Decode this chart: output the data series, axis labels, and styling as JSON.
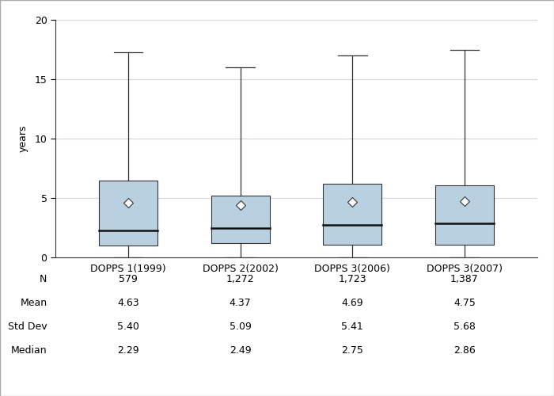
{
  "groups": [
    "DOPPS 1(1999)",
    "DOPPS 2(2002)",
    "DOPPS 3(2006)",
    "DOPPS 3(2007)"
  ],
  "box_data": [
    {
      "q1": 1.0,
      "median": 2.29,
      "q3": 6.5,
      "whisker_low": 0.0,
      "whisker_high": 17.3,
      "mean": 4.63
    },
    {
      "q1": 1.2,
      "median": 2.49,
      "q3": 5.2,
      "whisker_low": 0.0,
      "whisker_high": 16.0,
      "mean": 4.37
    },
    {
      "q1": 1.1,
      "median": 2.75,
      "q3": 6.2,
      "whisker_low": 0.0,
      "whisker_high": 17.0,
      "mean": 4.69
    },
    {
      "q1": 1.1,
      "median": 2.86,
      "q3": 6.1,
      "whisker_low": 0.0,
      "whisker_high": 17.5,
      "mean": 4.75
    }
  ],
  "stats_rows": [
    {
      "label": "N",
      "values": [
        "579",
        "1,272",
        "1,723",
        "1,387"
      ]
    },
    {
      "label": "Mean",
      "values": [
        "4.63",
        "4.37",
        "4.69",
        "4.75"
      ]
    },
    {
      "label": "Std Dev",
      "values": [
        "5.40",
        "5.09",
        "5.41",
        "5.68"
      ]
    },
    {
      "label": "Median",
      "values": [
        "2.29",
        "2.49",
        "2.75",
        "2.86"
      ]
    }
  ],
  "box_color": "#b8d0e0",
  "box_edge_color": "#333333",
  "whisker_color": "#333333",
  "median_color": "#111111",
  "mean_marker": "D",
  "mean_marker_color": "white",
  "mean_marker_edge": "#333333",
  "ylabel": "years",
  "ylim": [
    0,
    20
  ],
  "yticks": [
    0,
    5,
    10,
    15,
    20
  ],
  "background_color": "#ffffff",
  "plot_bg_color": "#ffffff",
  "box_width": 0.52,
  "border_color": "#aaaaaa",
  "grid_color": "#d0d8e0",
  "font_size": 9
}
